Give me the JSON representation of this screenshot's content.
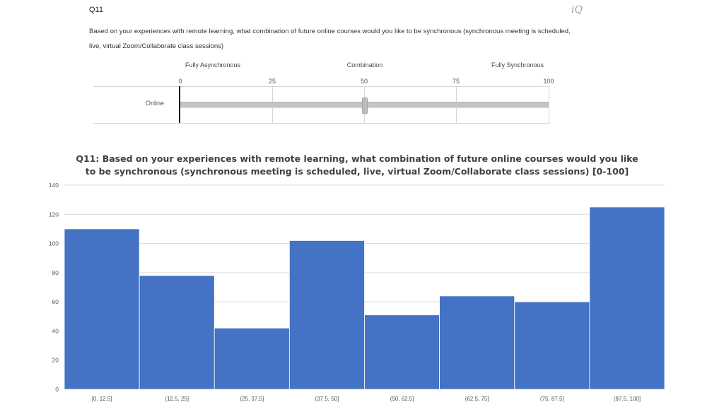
{
  "survey": {
    "question_id": "Q11",
    "logo_text": "iQ",
    "question_text": "Based on your experiences with remote learning, what combination of future online courses would you like to be synchronous (synchronous meeting is scheduled, live, virtual Zoom/Collaborate class sessions)",
    "scale_labels": [
      "Fully Asynchronous",
      "Combination",
      "Fully Synchronous"
    ],
    "scale_ticks": [
      "0",
      "25",
      "50",
      "75",
      "100"
    ],
    "row_label": "Online",
    "slider_value": 50
  },
  "chart_data": {
    "type": "bar",
    "title": "Q11: Based on your experiences with remote learning, what combination of future online courses would you like to be synchronous (synchronous meeting is scheduled, live, virtual Zoom/Collaborate class sessions) [0-100]",
    "categories": [
      "[0, 12.5]",
      "(12.5, 25]",
      "(25, 37.5]",
      "(37.5, 50]",
      "(50, 62.5]",
      "(62.5, 75]",
      "(75, 87.5]",
      "(87.5, 100]"
    ],
    "values": [
      110,
      78,
      42,
      102,
      51,
      64,
      60,
      125
    ],
    "xlabel": "",
    "ylabel": "",
    "ylim": [
      0,
      140
    ],
    "yticks": [
      0,
      20,
      40,
      60,
      80,
      100,
      120,
      140
    ],
    "grid": true,
    "bar_color": "#4472C4",
    "grid_color": "#d9d9d9"
  }
}
